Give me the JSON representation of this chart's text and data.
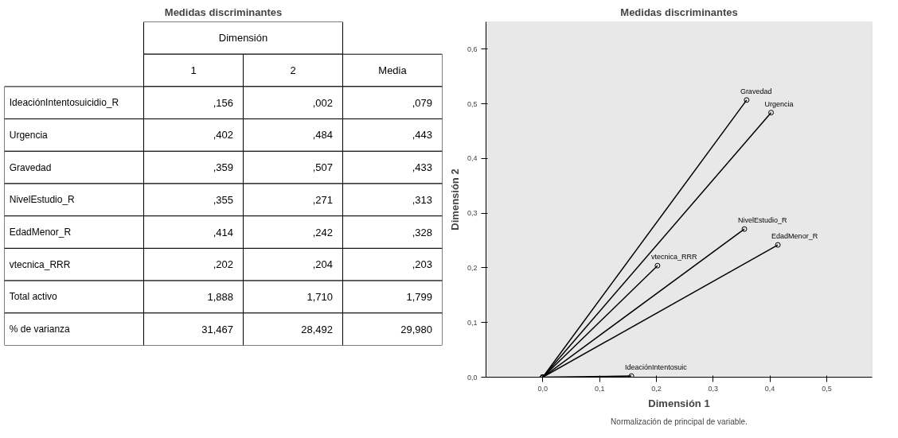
{
  "chart_data": [
    {
      "type": "other",
      "title": "Medidas discriminantes",
      "annotations": [
        "Dimensión",
        "1",
        "2",
        "Media",
        "IdeaciónIntentosuicidio_R",
        ",156",
        ",002",
        ",079",
        "Urgencia",
        ",402",
        ",484",
        ",443",
        "Gravedad",
        ",359",
        ",507",
        ",433",
        "NivelEstudio_R",
        ",355",
        ",271",
        ",313",
        "EdadMenor_R",
        ",414",
        ",242",
        ",328",
        "vtecnica_RRR",
        ",202",
        ",204",
        ",203",
        "Total activo",
        "1,888",
        "1,710",
        "1,799",
        "% de varianza",
        "31,467",
        "28,492",
        "29,980"
      ]
    },
    {
      "type": "line",
      "title": "Medidas discriminantes",
      "xlabel": "Dimensión 1",
      "ylabel": "Dimensión 2",
      "annotations": [
        "Normalización de principal de variable."
      ],
      "marker": "circle",
      "xlim": [
        -0.1,
        0.58
      ],
      "ylim": [
        0,
        0.65
      ],
      "xticks": [
        {
          "value": 0,
          "label": "0,0"
        },
        {
          "value": 0.1,
          "label": "0,1"
        },
        {
          "value": 0.2,
          "label": "0,2"
        },
        {
          "value": 0.3,
          "label": "0,3"
        },
        {
          "value": 0.4,
          "label": "0,4"
        },
        {
          "value": 0.5,
          "label": "0,5"
        }
      ],
      "yticks": [
        {
          "value": 0,
          "label": "0,0"
        },
        {
          "value": 0.1,
          "label": "0,1"
        },
        {
          "value": 0.2,
          "label": "0,2"
        },
        {
          "value": 0.3,
          "label": "0,3"
        },
        {
          "value": 0.4,
          "label": "0,4"
        },
        {
          "value": 0.5,
          "label": "0,5"
        },
        {
          "value": 0.6,
          "label": "0,6"
        }
      ],
      "series": [
        {
          "name": "IdeaciónIntentosuic",
          "color": "#000000",
          "x": [
            0,
            0.156
          ],
          "values": [
            0,
            0.002
          ]
        },
        {
          "name": "Urgencia",
          "color": "#000000",
          "x": [
            0,
            0.402
          ],
          "values": [
            0,
            0.484
          ]
        },
        {
          "name": "Gravedad",
          "color": "#000000",
          "x": [
            0,
            0.359
          ],
          "values": [
            0,
            0.507
          ]
        },
        {
          "name": "NivelEstudio_R",
          "color": "#000000",
          "x": [
            0,
            0.355
          ],
          "values": [
            0,
            0.271
          ]
        },
        {
          "name": "EdadMenor_R",
          "color": "#000000",
          "x": [
            0,
            0.414
          ],
          "values": [
            0,
            0.242
          ]
        },
        {
          "name": "vtecnica_RRR",
          "color": "#000000",
          "x": [
            0,
            0.202
          ],
          "values": [
            0,
            0.204
          ]
        }
      ]
    }
  ]
}
